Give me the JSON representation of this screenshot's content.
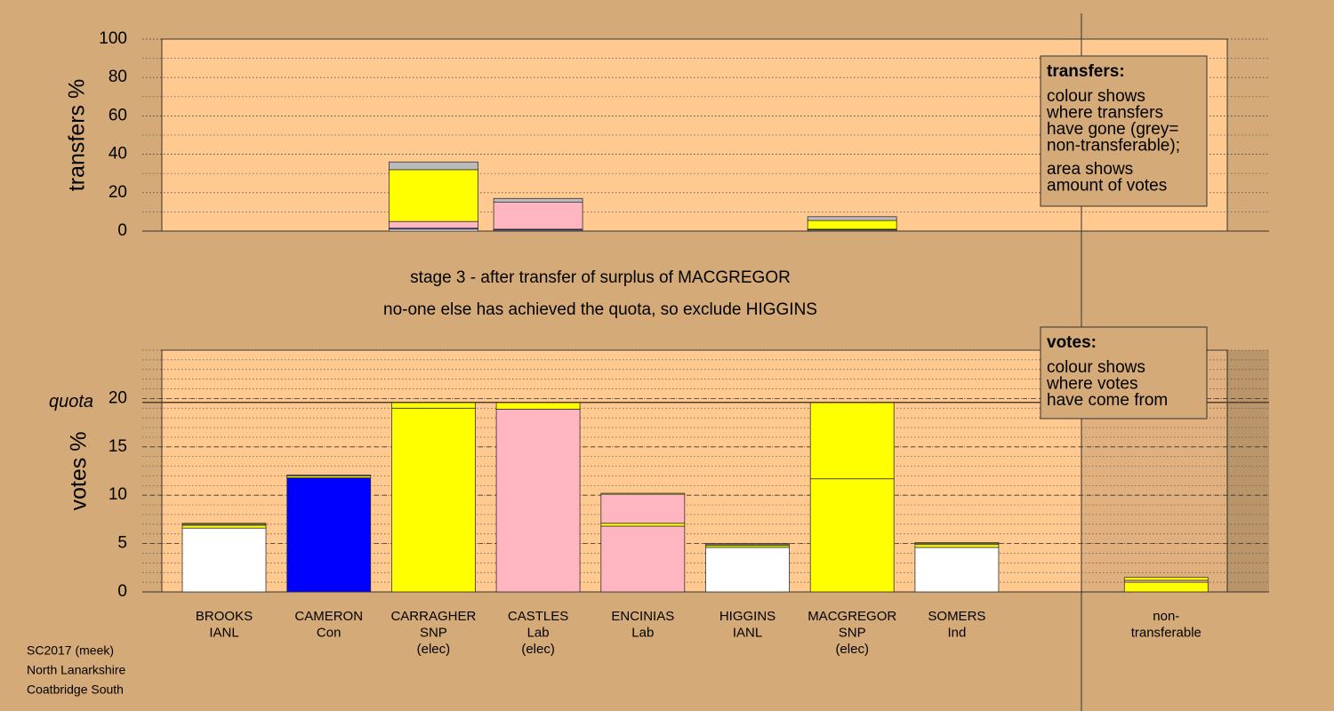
{
  "chart_data": [
    {
      "type": "bar",
      "stacked": true,
      "ylabel": "transfers %",
      "ylim": [
        0,
        100
      ],
      "yticks": [
        0,
        20,
        40,
        60,
        80,
        100
      ],
      "minor_grid_step": 10,
      "series": [
        {
          "color": "#ffffff",
          "values": [
            0,
            0,
            1.0,
            0.5,
            0,
            0,
            0.5,
            0,
            0
          ]
        },
        {
          "color": "#0000ff",
          "values": [
            0,
            0,
            0.5,
            0.5,
            0,
            0,
            0.2,
            0,
            0
          ]
        },
        {
          "color": "#ffb6c1",
          "values": [
            0,
            0,
            3.5,
            14,
            0,
            0,
            0.3,
            0,
            0
          ]
        },
        {
          "color": "#ffff00",
          "values": [
            0,
            0,
            27,
            0,
            0,
            0,
            4.5,
            0,
            0
          ]
        },
        {
          "color": "#bbbbbb",
          "values": [
            0,
            0,
            4,
            2,
            0,
            0,
            2,
            0,
            0
          ]
        }
      ],
      "note": {
        "title": "transfers:",
        "paragraphs": [
          [
            "colour shows",
            "where transfers",
            "have gone (grey=",
            "non-transferable);"
          ],
          [
            "area shows",
            "amount of votes"
          ]
        ]
      }
    },
    {
      "type": "bar",
      "stacked": true,
      "ylabel": "votes %",
      "ylim": [
        0,
        25
      ],
      "yticks": [
        0,
        5,
        10,
        15,
        20
      ],
      "minor_grid_step": 1,
      "quota": {
        "value": 19.6,
        "label": "quota"
      },
      "categories": [
        [
          "BROOKS",
          "IANL"
        ],
        [
          "CAMERON",
          "Con"
        ],
        [
          "CARRAGHER",
          "SNP",
          "(elec)"
        ],
        [
          "CASTLES",
          "Lab",
          "(elec)"
        ],
        [
          "ENCINIAS",
          "Lab"
        ],
        [
          "HIGGINS",
          "IANL"
        ],
        [
          "MACGREGOR",
          "SNP",
          "(elec)"
        ],
        [
          "SOMERS",
          "Ind"
        ],
        [
          "non-",
          "transferable"
        ]
      ],
      "series": [
        {
          "colors": [
            "#ffffff",
            "#0000ff",
            "#ffff00",
            "#ffb6c1",
            "#ffb6c1",
            "#ffffff",
            "#ffff00",
            "#ffffff",
            "#ffff00"
          ],
          "values": [
            6.6,
            11.8,
            19.0,
            18.9,
            6.8,
            4.6,
            11.7,
            4.6,
            0
          ]
        },
        {
          "color": "#ffff00",
          "values": [
            0.3,
            0.2,
            0,
            0.7,
            0.3,
            0.2,
            7.9,
            0.3,
            1.0
          ]
        },
        {
          "color": "#ffb6c1",
          "values": [
            0.1,
            0.1,
            0,
            0,
            3.0,
            0.1,
            0,
            0.1,
            0.2
          ]
        },
        {
          "color": "#ffff00",
          "values": [
            0.1,
            0,
            0.6,
            0,
            0.1,
            0.1,
            0,
            0.1,
            0.3
          ]
        }
      ],
      "note": {
        "title": "votes:",
        "paragraphs": [
          [
            "colour shows",
            "where votes",
            "have come from"
          ]
        ]
      }
    }
  ],
  "stage": [
    "stage 3 - after transfer of surplus of MACGREGOR",
    "no-one else has achieved the quota, so exclude HIGGINS"
  ],
  "footer": [
    "SC2017 (meek)",
    "North Lanarkshire",
    "Coatbridge South"
  ]
}
